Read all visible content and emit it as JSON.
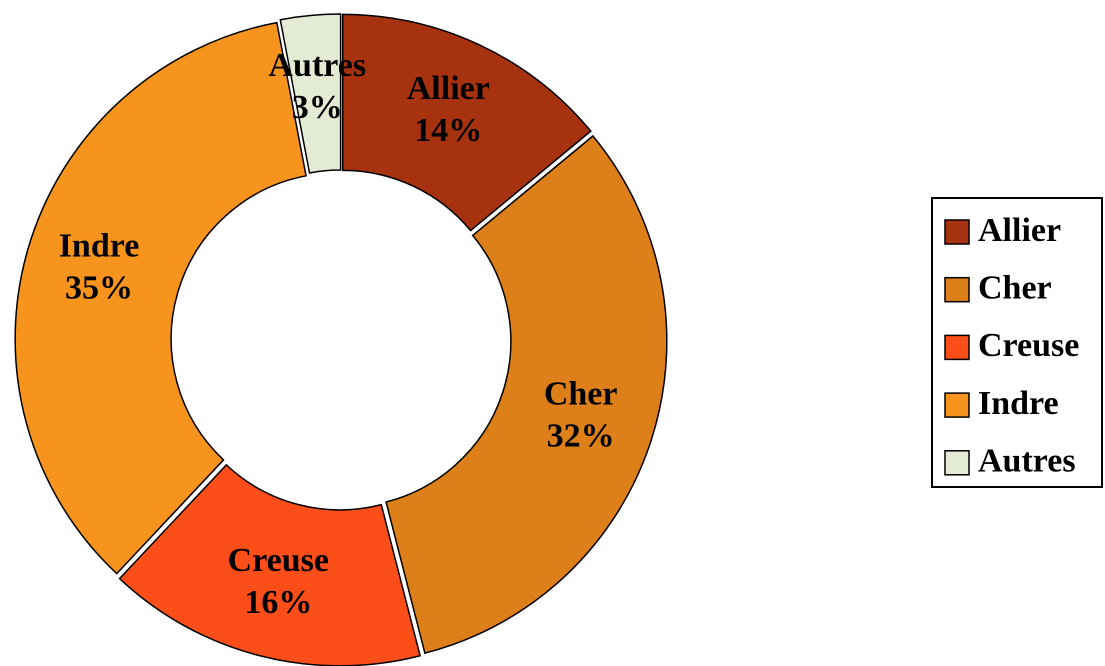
{
  "chart_data": {
    "type": "donut",
    "categories": [
      "Allier",
      "Cher",
      "Creuse",
      "Indre",
      "Autres"
    ],
    "values": [
      14,
      32,
      16,
      35,
      3
    ],
    "value_labels": [
      "14%",
      "32%",
      "16%",
      "35%",
      "3%"
    ],
    "colors": [
      "#a63210",
      "#de8019",
      "#fc4e19",
      "#f7941d",
      "#e3ebd4"
    ],
    "legend": "right"
  }
}
